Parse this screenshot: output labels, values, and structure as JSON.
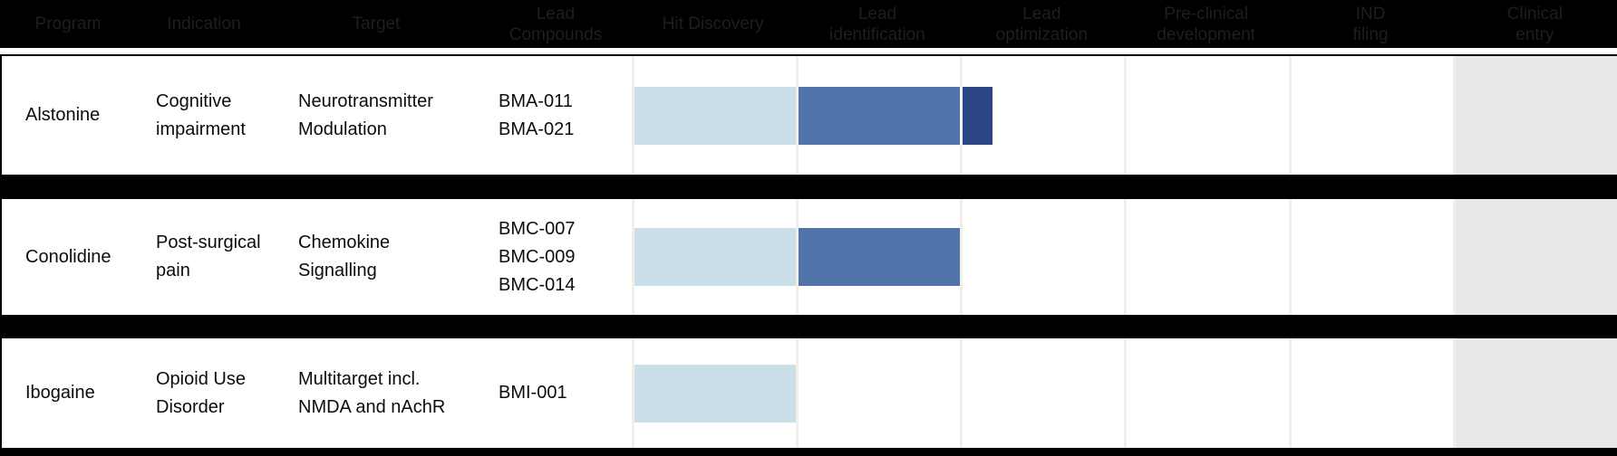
{
  "header": {
    "background": "#000000",
    "text_color": "#1e1e1e",
    "cols": [
      "Program",
      "Indication",
      "Target",
      "Lead\nCompounds",
      "Hit Discovery",
      "Lead\nidentification",
      "Lead\noptimization",
      "Pre-clinical\ndevelopment",
      "IND\nfiling",
      "Clinical\nentry"
    ]
  },
  "rows": [
    {
      "program": "Alstonine",
      "indication": "Cognitive\nimpairment",
      "target": "Neurotransmitter\nModulation",
      "compounds": [
        "BMA-011",
        "BMA-021"
      ]
    },
    {
      "program": "Conolidine",
      "indication": "Post-surgical\npain",
      "target": "Chemokine\nSignalling",
      "compounds": [
        "BMC-007",
        "BMC-009",
        "BMC-014"
      ]
    },
    {
      "program": "Ibogaine",
      "indication": "Opioid Use\nDisorder",
      "target": "Multitarget incl.\nNMDA and nAchR",
      "compounds": [
        "BMI-001"
      ]
    }
  ],
  "chart_data": {
    "type": "bar",
    "variant": "pipeline-gantt",
    "stages": [
      "Hit Discovery",
      "Lead identification",
      "Lead optimization",
      "Pre-clinical development",
      "IND filing",
      "Clinical entry"
    ],
    "colors": {
      "early": "#cbdfe9",
      "mid": "#5174ab",
      "late": "#2b4686",
      "clinical_shade": "#e8e8e9",
      "gridline": "#f2efe9"
    },
    "series": [
      {
        "program": "Alstonine",
        "segments": [
          {
            "from": 0,
            "to": 1,
            "color": "early"
          },
          {
            "from": 1,
            "to": 2,
            "color": "mid"
          },
          {
            "from": 2,
            "to": 2.19,
            "color": "late"
          }
        ]
      },
      {
        "program": "Conolidine",
        "segments": [
          {
            "from": 0,
            "to": 1,
            "color": "early"
          },
          {
            "from": 1,
            "to": 2,
            "color": "mid"
          }
        ]
      },
      {
        "program": "Ibogaine",
        "segments": [
          {
            "from": 0,
            "to": 1,
            "color": "early"
          }
        ]
      }
    ]
  }
}
